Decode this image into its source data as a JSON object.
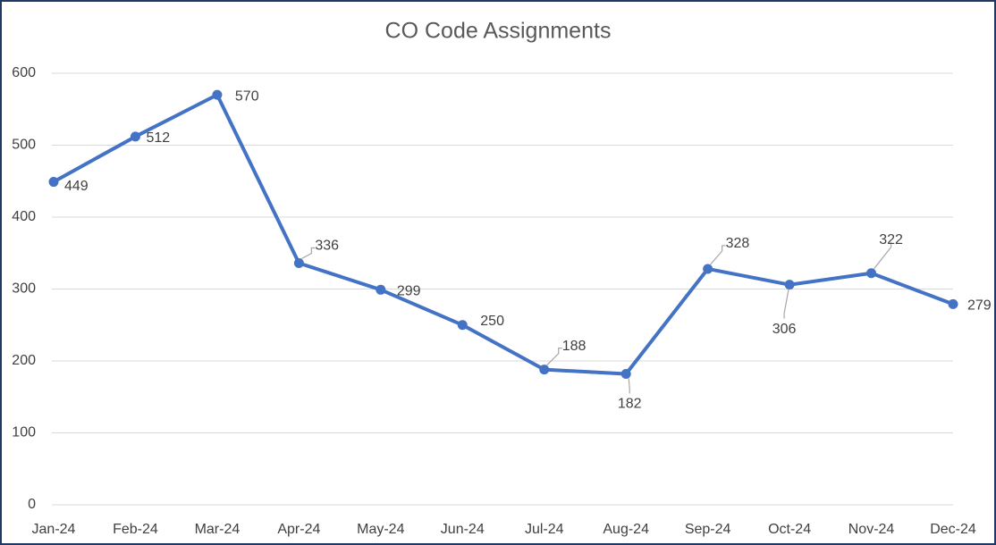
{
  "chart_data": {
    "type": "line",
    "title": "CO Code Assignments",
    "categories": [
      "Jan-24",
      "Feb-24",
      "Mar-24",
      "Apr-24",
      "May-24",
      "Jun-24",
      "Jul-24",
      "Aug-24",
      "Sep-24",
      "Oct-24",
      "Nov-24",
      "Dec-24"
    ],
    "series": [
      {
        "name": "CO Code Assignments",
        "color": "#4472c4",
        "values": [
          449,
          512,
          570,
          336,
          299,
          250,
          188,
          182,
          328,
          306,
          322,
          279
        ]
      }
    ],
    "ylim": [
      0,
      600
    ],
    "yticks": [
      0,
      100,
      200,
      300,
      400,
      500,
      600
    ],
    "grid": true,
    "legend": false
  }
}
